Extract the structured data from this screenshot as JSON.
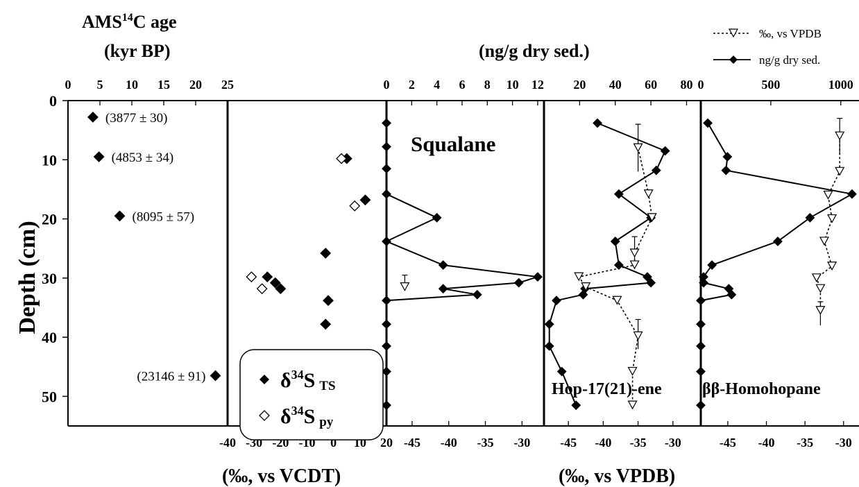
{
  "labels": {
    "age_title": "AMS",
    "age_sup": "14",
    "age_title_end": "C age",
    "age_units": "(kyr BP)",
    "conc_units": "(ng/g dry sed.)",
    "y_axis": "Depth (cm)",
    "x_bottom_sulfur": "(‰, vs VCDT)",
    "x_bottom_carbon": "(‰, vs VPDB)",
    "legend_vpdb": "‰, vs VPDB",
    "legend_conc": "ng/g dry sed.",
    "delta": "δ",
    "sup34": "34",
    "s_letter": "S",
    "ts_sub": "TS",
    "py_sub": "py"
  },
  "chart_data": [
    {
      "type": "scatter",
      "panel": "age",
      "xlabel": "AMS 14C age (kyr BP)",
      "ylabel": "Depth (cm)",
      "xlim": [
        0,
        25
      ],
      "ylim": [
        55,
        0
      ],
      "xticks": [
        0,
        5,
        10,
        15,
        20,
        25
      ],
      "yticks": [
        0,
        10,
        20,
        30,
        40,
        50
      ],
      "points": [
        {
          "x": 3.9,
          "y": 2.8,
          "label": "(3877 ± 30)"
        },
        {
          "x": 4.85,
          "y": 9.5,
          "label": "(4853 ± 34)"
        },
        {
          "x": 8.1,
          "y": 19.5,
          "label": "(8095 ± 57)"
        },
        {
          "x": 23.1,
          "y": 46.5,
          "label": "(23146 ± 91)"
        }
      ]
    },
    {
      "type": "scatter",
      "panel": "sulfur",
      "xlabel": "(‰, vs VCDT)",
      "xlim": [
        -40,
        20
      ],
      "xticks": [
        -40,
        -30,
        -20,
        -10,
        0,
        10,
        20
      ],
      "series": [
        {
          "name": "δ34S TS",
          "marker": "filled-diamond",
          "points": [
            [
              5,
              9.8
            ],
            [
              12,
              16.8
            ],
            [
              -3,
              25.8
            ],
            [
              -25,
              29.8
            ],
            [
              -22,
              30.8
            ],
            [
              -20,
              31.8
            ],
            [
              -2,
              33.8
            ],
            [
              -3,
              37.8
            ]
          ]
        },
        {
          "name": "δ34S py",
          "marker": "open-diamond",
          "points": [
            [
              3,
              9.8
            ],
            [
              8,
              17.8
            ],
            [
              -31,
              29.8
            ],
            [
              -27,
              31.8
            ]
          ]
        }
      ]
    },
    {
      "type": "line",
      "panel": "squalane",
      "title": "Squalane",
      "top_xlim": [
        0,
        12.5
      ],
      "top_xticks": [
        0,
        2,
        4,
        6,
        8,
        10,
        12
      ],
      "bottom_xlim": [
        -48.5,
        -27
      ],
      "bottom_xticks": [
        -45,
        -40,
        -35,
        -30
      ],
      "series": [
        {
          "name": "ng/g dry sed.",
          "axis": "top",
          "points": [
            [
              0,
              3.8
            ],
            [
              0,
              7.8
            ],
            [
              0,
              11.5
            ],
            [
              0,
              15.8
            ],
            [
              4,
              19.8
            ],
            [
              0,
              23.8
            ],
            [
              4.5,
              27.8
            ],
            [
              12,
              29.8
            ],
            [
              10.5,
              30.8
            ],
            [
              4.5,
              31.8
            ],
            [
              7.2,
              32.8
            ],
            [
              0,
              33.8
            ],
            [
              0,
              37.8
            ],
            [
              0,
              41.5
            ],
            [
              0,
              45.8
            ],
            [
              0,
              51.5
            ]
          ]
        },
        {
          "name": "‰, vs VPDB",
          "axis": "bottom",
          "points": [
            [
              -46,
              31.5
            ]
          ],
          "error_bars": [
            [
              -46,
              29.5,
              31.5
            ]
          ]
        }
      ]
    },
    {
      "type": "line",
      "panel": "hopene",
      "title": "Hop-17(21)-ene",
      "top_xlim": [
        0,
        88
      ],
      "top_xticks": [
        20,
        40,
        60,
        80
      ],
      "bottom_xlim": [
        -48.5,
        -26
      ],
      "bottom_xticks": [
        -45,
        -40,
        -35,
        -30
      ],
      "series": [
        {
          "name": "ng/g dry sed.",
          "axis": "top",
          "points": [
            [
              30,
              3.8
            ],
            [
              68,
              8.5
            ],
            [
              63,
              11.8
            ],
            [
              42,
              15.8
            ],
            [
              60,
              19.8
            ],
            [
              40,
              23.8
            ],
            [
              42,
              27.8
            ],
            [
              58,
              29.8
            ],
            [
              60,
              30.8
            ],
            [
              23,
              31.8
            ],
            [
              22,
              32.8
            ],
            [
              7,
              33.8
            ],
            [
              3,
              37.8
            ],
            [
              3,
              41.5
            ],
            [
              10,
              45.8
            ],
            [
              18,
              51.5
            ]
          ]
        },
        {
          "name": "‰, vs VPDB",
          "axis": "bottom",
          "points": [
            [
              -35,
              8
            ],
            [
              -33.5,
              15.8
            ],
            [
              -33,
              19.8
            ],
            [
              -35.5,
              25.8
            ],
            [
              -35.5,
              27.8
            ],
            [
              -43.5,
              29.8
            ],
            [
              -42.5,
              31.5
            ],
            [
              -38,
              33.8
            ],
            [
              -35,
              39.8
            ],
            [
              -35.8,
              45.8
            ],
            [
              -35.8,
              51.5
            ]
          ],
          "error_bars": [
            [
              -35,
              4,
              12
            ],
            [
              -35.5,
              23,
              28.5
            ],
            [
              -35,
              37,
              42
            ]
          ]
        }
      ]
    },
    {
      "type": "line",
      "panel": "homohopane",
      "title": "ββ-Homohopane",
      "top_xlim": [
        0,
        1130
      ],
      "top_xticks": [
        0,
        500,
        1000
      ],
      "bottom_xlim": [
        -48.5,
        -28
      ],
      "bottom_xticks": [
        -45,
        -40,
        -35,
        -30
      ],
      "series": [
        {
          "name": "ng/g dry sed.",
          "axis": "top",
          "points": [
            [
              50,
              3.8
            ],
            [
              190,
              9.5
            ],
            [
              180,
              11.8
            ],
            [
              1080,
              15.8
            ],
            [
              780,
              19.8
            ],
            [
              550,
              23.8
            ],
            [
              80,
              27.8
            ],
            [
              20,
              29.8
            ],
            [
              20,
              30.8
            ],
            [
              200,
              31.8
            ],
            [
              220,
              32.8
            ],
            [
              0,
              33.8
            ],
            [
              0,
              37.8
            ],
            [
              0,
              41.5
            ],
            [
              0,
              45.8
            ],
            [
              0,
              51.5
            ]
          ]
        },
        {
          "name": "‰, vs VPDB",
          "axis": "bottom",
          "points": [
            [
              -30.5,
              6
            ],
            [
              -30.5,
              12
            ],
            [
              -32,
              16
            ],
            [
              -31.5,
              20
            ],
            [
              -32.5,
              23.8
            ],
            [
              -31.5,
              28
            ],
            [
              -33.5,
              30
            ],
            [
              -33,
              31.8
            ],
            [
              -33,
              35.5
            ]
          ],
          "error_bars": [
            [
              -30.5,
              3,
              9
            ],
            [
              -33,
              34,
              38
            ]
          ]
        }
      ]
    }
  ]
}
